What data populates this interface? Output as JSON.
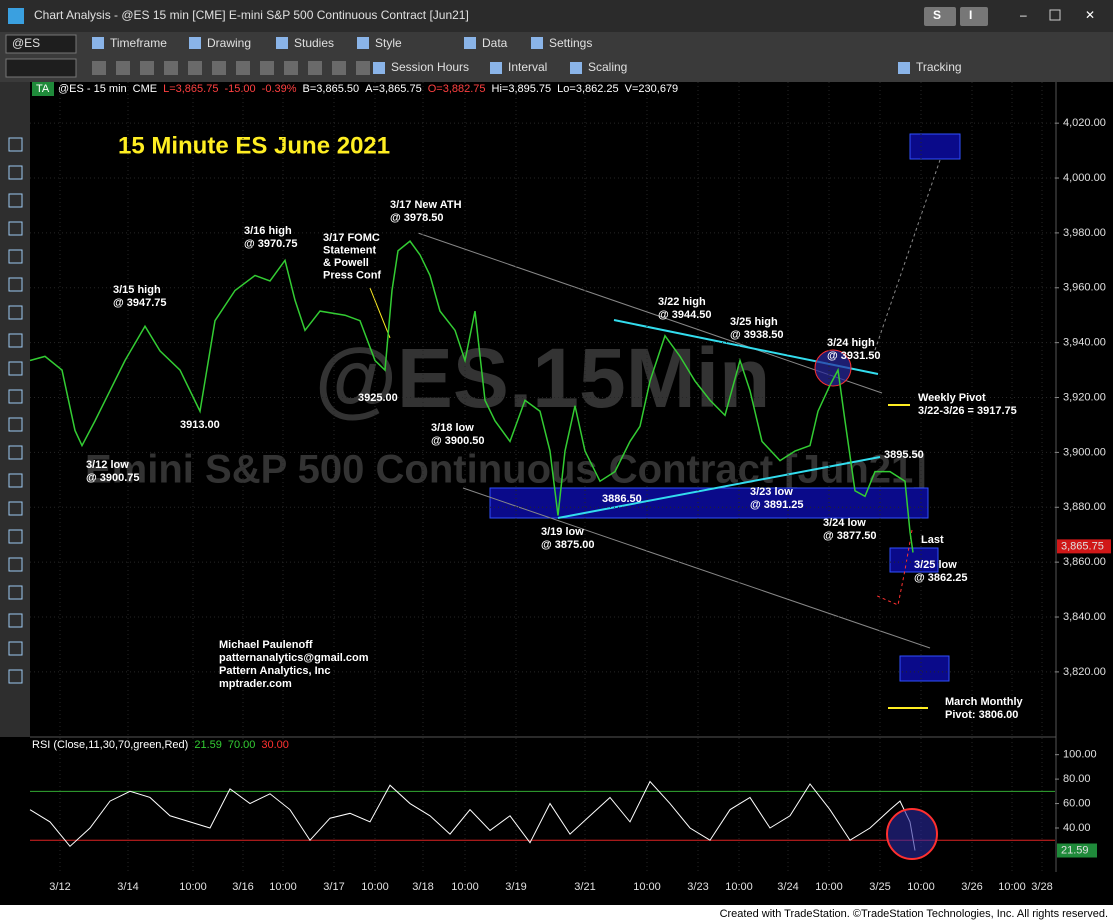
{
  "window": {
    "title": "Chart Analysis - @ES 15 min [CME] E-mini S&P 500 Continuous Contract [Jun21]",
    "buttons": [
      "S",
      "I"
    ],
    "symbol": "@ES",
    "menu": [
      "Timeframe",
      "Drawing",
      "Studies",
      "Style",
      "Data",
      "Settings"
    ],
    "toolbar2": [
      "Session Hours",
      "Interval",
      "Scaling",
      "Tracking"
    ],
    "footer": "Created with TradeStation. ©TradeStation Technologies, Inc. All rights reserved."
  },
  "chart_data": {
    "type": "line",
    "title": "15 Minute ES June 2021",
    "badge": "TA",
    "header": [
      {
        "text": "@ES - 15 min",
        "color": "#ffffff"
      },
      {
        "text": "CME",
        "color": "#ffffff"
      },
      {
        "text": "L=3,865.75",
        "color": "#ff4040"
      },
      {
        "text": "-15.00",
        "color": "#ff4040"
      },
      {
        "text": "-0.39%",
        "color": "#ff4040"
      },
      {
        "text": "B=3,865.50",
        "color": "#ffffff"
      },
      {
        "text": "A=3,865.75",
        "color": "#ffffff"
      },
      {
        "text": "O=3,882.75",
        "color": "#ff4040"
      },
      {
        "text": "Hi=3,895.75",
        "color": "#ffffff"
      },
      {
        "text": "Lo=3,862.25",
        "color": "#ffffff"
      },
      {
        "text": "V=230,679",
        "color": "#ffffff"
      }
    ],
    "watermark": [
      "@ES.15Min",
      "Emini S&P 500 Continuous Contract [Jun21]"
    ],
    "xlim": [
      0,
      1025
    ],
    "ylim": [
      3797,
      4035
    ],
    "grid": true,
    "xticks": [
      {
        "value": 30,
        "label": "3/12"
      },
      {
        "value": 98,
        "label": "3/14"
      },
      {
        "value": 163,
        "label": "10:00"
      },
      {
        "value": 213,
        "label": "3/16"
      },
      {
        "value": 253,
        "label": "10:00"
      },
      {
        "value": 304,
        "label": "3/17"
      },
      {
        "value": 345,
        "label": "10:00"
      },
      {
        "value": 393,
        "label": "3/18"
      },
      {
        "value": 435,
        "label": "10:00"
      },
      {
        "value": 486,
        "label": "3/19"
      },
      {
        "value": 555,
        "label": "3/21"
      },
      {
        "value": 617,
        "label": "10:00"
      },
      {
        "value": 668,
        "label": "3/23"
      },
      {
        "value": 709,
        "label": "10:00"
      },
      {
        "value": 758,
        "label": "3/24"
      },
      {
        "value": 799,
        "label": "10:00"
      },
      {
        "value": 850,
        "label": "3/25"
      },
      {
        "value": 891,
        "label": "10:00"
      },
      {
        "value": 942,
        "label": "3/26"
      },
      {
        "value": 982,
        "label": "10:00"
      },
      {
        "value": 1012,
        "label": "3/28"
      }
    ],
    "yticks": [
      {
        "value": 4020,
        "label": "4,020.00"
      },
      {
        "value": 4000,
        "label": "4,000.00"
      },
      {
        "value": 3980,
        "label": "3,980.00"
      },
      {
        "value": 3960,
        "label": "3,960.00"
      },
      {
        "value": 3940,
        "label": "3,940.00"
      },
      {
        "value": 3920,
        "label": "3,920.00"
      },
      {
        "value": 3900,
        "label": "3,900.00"
      },
      {
        "value": 3880,
        "label": "3,880.00"
      },
      {
        "value": 3860,
        "label": "3,860.00"
      },
      {
        "value": 3840,
        "label": "3,840.00"
      },
      {
        "value": 3820,
        "label": "3,820.00"
      }
    ],
    "last_price": {
      "value": 3865.75,
      "label": "3,865.75"
    },
    "x": [
      0,
      15,
      32,
      45,
      52,
      65,
      80,
      95,
      115,
      130,
      150,
      170,
      175,
      185,
      205,
      225,
      240,
      255,
      265,
      275,
      290,
      315,
      330,
      345,
      355,
      362,
      368,
      380,
      390,
      400,
      410,
      425,
      435,
      445,
      455,
      465,
      480,
      495,
      510,
      520,
      528,
      535,
      545,
      555,
      570,
      585,
      600,
      610,
      620,
      635,
      650,
      665,
      680,
      695,
      710,
      720,
      732,
      750,
      765,
      780,
      788,
      800,
      808,
      815,
      825,
      835,
      845,
      860,
      875,
      880,
      883
    ],
    "series": [
      {
        "name": "@ES",
        "color": "#33cc33",
        "values": [
          3933.5,
          3935,
          3930,
          3908,
          3902.5,
          3911.5,
          3922.5,
          3933.5,
          3946,
          3937,
          3930,
          3915,
          3926,
          3948,
          3959,
          3964.5,
          3962.5,
          3970,
          3955.5,
          3944.5,
          3951.5,
          3950,
          3948,
          3933.5,
          3930,
          3959,
          3973.5,
          3977,
          3972,
          3964.5,
          3951.5,
          3944.5,
          3933.5,
          3951.5,
          3919,
          3911.5,
          3904,
          3919,
          3915,
          3900.5,
          3877,
          3900.5,
          3917,
          3900.5,
          3889.5,
          3893,
          3904,
          3909.5,
          3926,
          3942.5,
          3935,
          3926,
          3919,
          3913.5,
          3933.5,
          3922.5,
          3904,
          3897,
          3900.5,
          3902.5,
          3915,
          3924.5,
          3930,
          3911.5,
          3886,
          3884,
          3893,
          3893,
          3889.5,
          3871,
          3863.5
        ]
      }
    ],
    "annotations": [
      {
        "lines": [
          "3/17 New ATH",
          "@ 3978.50"
        ],
        "color": "#33ddee"
      },
      {
        "lines": [
          "3/16 high",
          "@ 3970.75"
        ],
        "color": "#9a9a9a"
      },
      {
        "lines": [
          "3/15 high",
          "@ 3947.75"
        ],
        "color": "#9a9a9a"
      },
      {
        "lines": [
          "3/17 FOMC",
          "Statement",
          "& Powell",
          "Press Conf"
        ],
        "color": "#ffee22"
      },
      {
        "lines": [
          "3913.00"
        ],
        "color": "#9a9a9a"
      },
      {
        "lines": [
          "3925.00"
        ],
        "color": "#9a9a9a"
      },
      {
        "lines": [
          "3/18 low",
          "@ 3900.50"
        ],
        "color": "#9a9a9a"
      },
      {
        "lines": [
          "3/12 low",
          "@ 3900.75"
        ],
        "color": "#9a9a9a"
      },
      {
        "lines": [
          "3/22 high",
          "@ 3944.50"
        ],
        "color": "#ffee22"
      },
      {
        "lines": [
          "3/25 high",
          "@ 3938.50"
        ],
        "color": "#ffee22"
      },
      {
        "lines": [
          "3/24 high",
          "@ 3931.50"
        ],
        "color": "#ffffff"
      },
      {
        "lines": [
          "Weekly Pivot",
          "3/22-3/26 = 3917.75"
        ],
        "color": "#ffee22"
      },
      {
        "lines": [
          "3895.50"
        ],
        "color": "#ffffff"
      },
      {
        "lines": [
          "3886.50"
        ],
        "color": "#ffffff"
      },
      {
        "lines": [
          "3/23 low",
          "@ 3891.25"
        ],
        "color": "#ffffff"
      },
      {
        "lines": [
          "3/24 low",
          "@ 3877.50"
        ],
        "color": "#ffffff"
      },
      {
        "lines": [
          "3/19 low",
          "@ 3875.00"
        ],
        "color": "#33ddee"
      },
      {
        "lines": [
          "Last"
        ],
        "color": "#ff3030"
      },
      {
        "lines": [
          "3/25 low",
          "@ 3862.25"
        ],
        "color": "#33ddee"
      },
      {
        "lines": [
          "Michael Paulenoff",
          "patternanalytics@gmail.com",
          "Pattern Analytics, Inc",
          "mptrader.com"
        ],
        "color": "#9a9a9a"
      },
      {
        "lines": [
          "March Monthly",
          "Pivot: 3806.00"
        ],
        "color": "#ffee22"
      }
    ],
    "rsi": {
      "legend": [
        {
          "text": "RSI (Close,11,30,70,green,Red)",
          "color": "#ffffff"
        },
        {
          "text": "21.59",
          "color": "#33cc33"
        },
        {
          "text": "70.00",
          "color": "#33cc33"
        },
        {
          "text": "30.00",
          "color": "#ff3030"
        }
      ],
      "ylim": [
        4,
        112
      ],
      "yticks": [
        {
          "value": 100,
          "label": "100.00"
        },
        {
          "value": 80,
          "label": "80.00"
        },
        {
          "value": 60,
          "label": "60.00"
        },
        {
          "value": 40,
          "label": "40.00"
        }
      ],
      "levels": [
        {
          "value": 70,
          "color": "#33aa33"
        },
        {
          "value": 30,
          "color": "#dd2222"
        }
      ],
      "last": 21.59,
      "x": [
        0,
        20,
        40,
        60,
        80,
        100,
        120,
        140,
        160,
        180,
        200,
        220,
        240,
        260,
        280,
        300,
        320,
        340,
        360,
        380,
        400,
        420,
        440,
        460,
        480,
        500,
        520,
        540,
        560,
        580,
        600,
        620,
        640,
        660,
        680,
        700,
        720,
        740,
        760,
        780,
        800,
        820,
        840,
        860,
        870,
        880,
        885
      ],
      "values": [
        55,
        45,
        25,
        40,
        62,
        70,
        65,
        50,
        45,
        40,
        72,
        60,
        68,
        55,
        30,
        48,
        52,
        45,
        75,
        60,
        50,
        35,
        55,
        38,
        50,
        28,
        60,
        35,
        50,
        65,
        45,
        78,
        60,
        40,
        30,
        55,
        65,
        40,
        50,
        76,
        55,
        30,
        40,
        55,
        62,
        45,
        21.59
      ]
    }
  }
}
